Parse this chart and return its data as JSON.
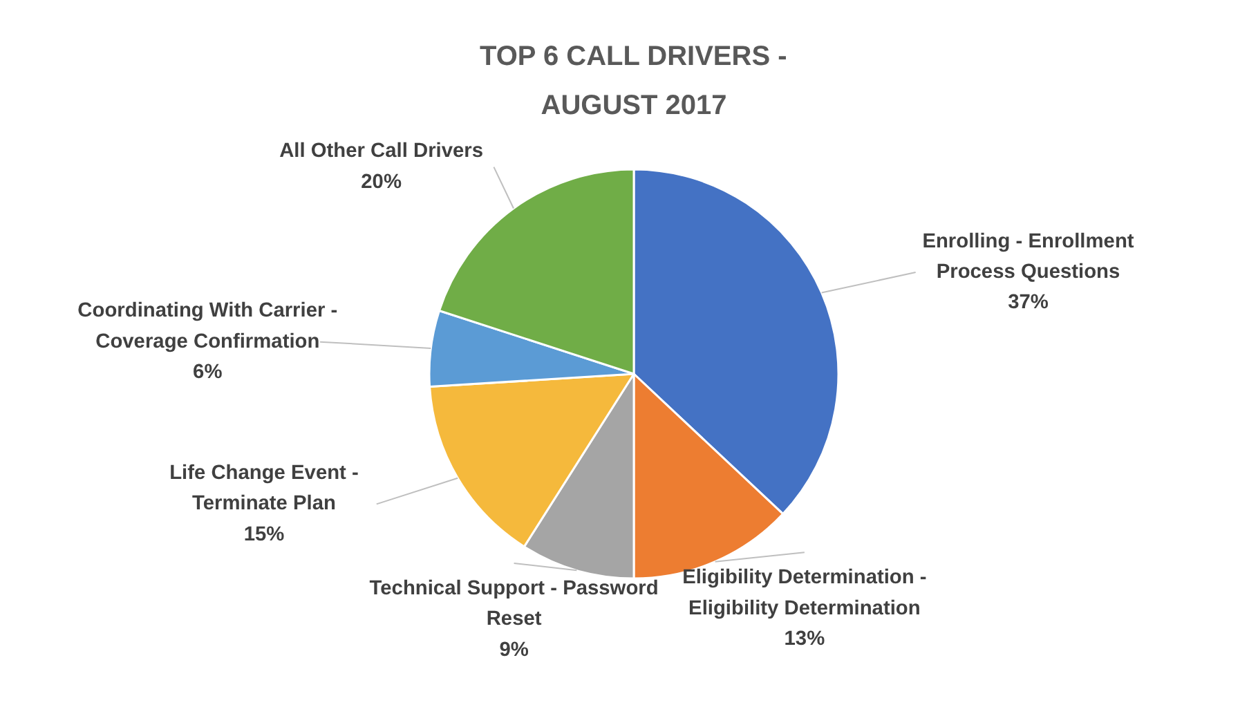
{
  "chart_data": {
    "type": "pie",
    "title": "TOP 6 CALL DRIVERS - AUGUST 2017",
    "categories": [
      "Enrolling - Enrollment Process Questions",
      "Eligibility Determination - Eligibility Determination",
      "Technical Support - Password Reset",
      "Life Change Event - Terminate Plan",
      "Coordinating With Carrier - Coverage Confirmation",
      "All Other Call Drivers"
    ],
    "values": [
      37,
      13,
      9,
      15,
      6,
      20
    ],
    "colors": [
      "#4472c4",
      "#ed7d31",
      "#a5a5a5",
      "#f5b93c",
      "#5b9bd5",
      "#70ad47"
    ],
    "value_labels": [
      "37%",
      "13%",
      "9%",
      "15%",
      "6%",
      "20%"
    ]
  }
}
